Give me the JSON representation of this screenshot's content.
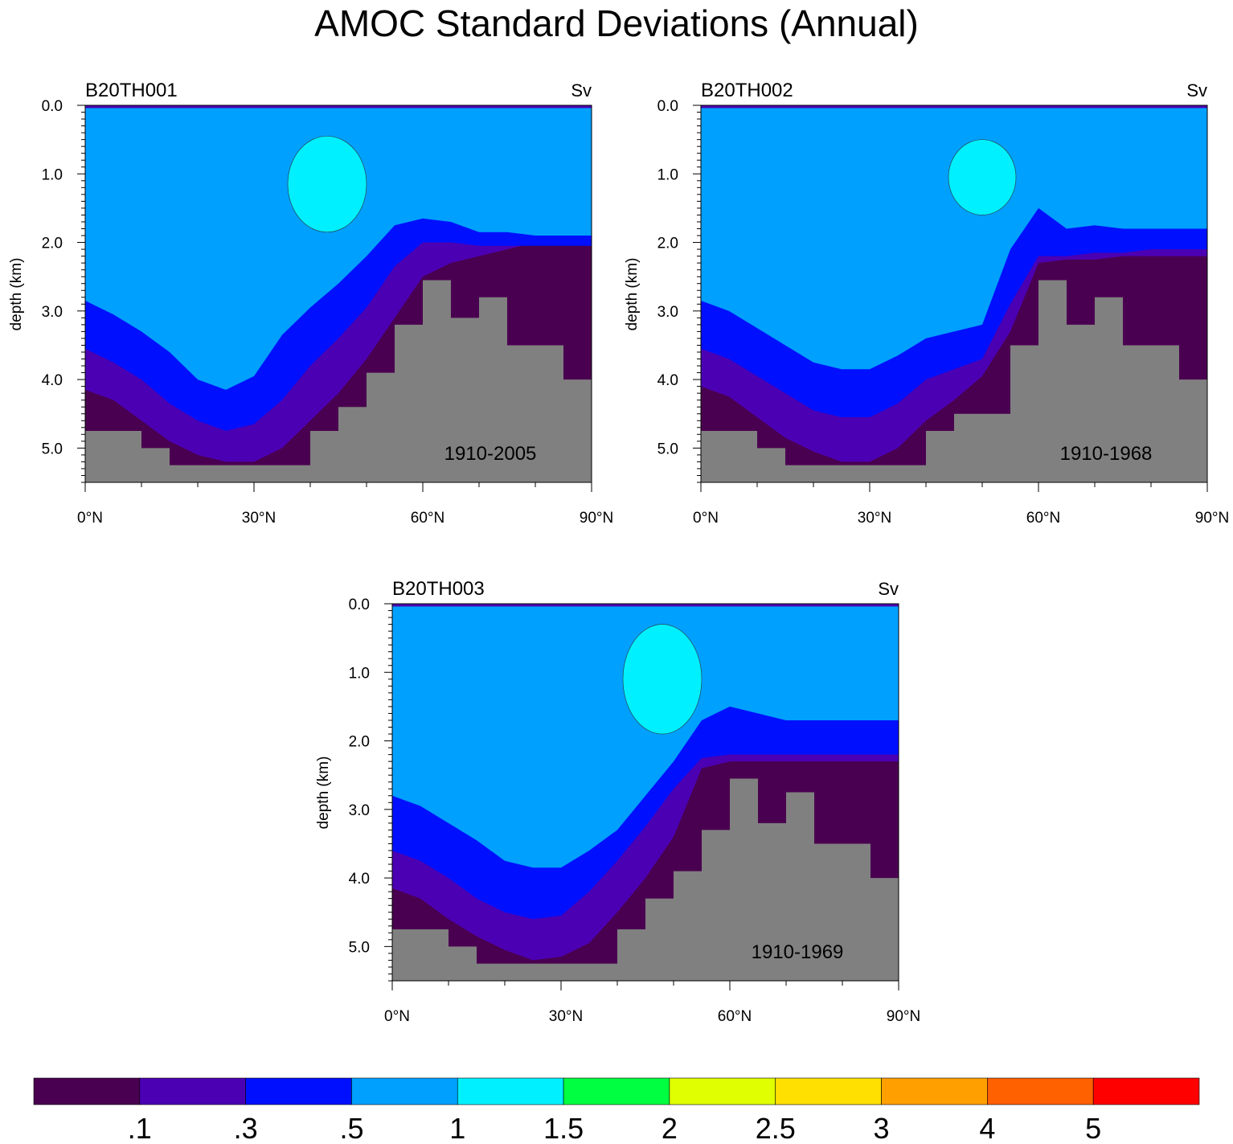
{
  "figure": {
    "title": "AMOC Standard Deviations (Annual)"
  },
  "colors": {
    "levels": [
      "#4a0050",
      "#4b00b3",
      "#0010ff",
      "#00a0ff",
      "#00f0ff",
      "#00ff40",
      "#e0ff00",
      "#ffe000",
      "#ffa000",
      "#ff6000",
      "#ff0000"
    ],
    "land": "#808080",
    "axis": "#000000"
  },
  "chart_data": [
    {
      "type": "heatmap",
      "title": "B20TH001",
      "units": "Sv",
      "period": "1910-2005",
      "xlabel": "",
      "ylabel": "depth (km)",
      "xlim": [
        0,
        90
      ],
      "ylim": [
        0,
        5.5
      ],
      "x_ticks": [
        "0°N",
        "30°N",
        "60°N",
        "90°N"
      ],
      "y_ticks": [
        "0.0",
        "1.0",
        "2.0",
        "3.0",
        "4.0",
        "5.0"
      ],
      "contour_levels": [
        0.1,
        0.3,
        0.5,
        1,
        1.5
      ],
      "bands": {
        "x": [
          0,
          5,
          10,
          15,
          20,
          25,
          30,
          35,
          40,
          45,
          50,
          55,
          60,
          65,
          70,
          75,
          80,
          85,
          90
        ],
        "ge_1_5_island": {
          "x_range": [
            36,
            50
          ],
          "depth_range": [
            0.45,
            1.85
          ]
        },
        "ge_1_bottom": [
          2.85,
          3.05,
          3.3,
          3.6,
          4.0,
          4.15,
          3.95,
          3.35,
          2.95,
          2.6,
          2.2,
          1.75,
          1.65,
          1.7,
          1.85,
          1.85,
          1.9,
          1.9,
          1.9
        ],
        "ge_0_5_bottom": [
          3.55,
          3.75,
          4.0,
          4.35,
          4.6,
          4.75,
          4.65,
          4.3,
          3.8,
          3.4,
          2.95,
          2.35,
          2.0,
          2.0,
          2.05,
          2.05,
          2.05,
          2.05,
          2.05
        ],
        "ge_0_3_bottom": [
          4.15,
          4.3,
          4.6,
          4.9,
          5.1,
          5.2,
          5.2,
          5.0,
          4.6,
          4.2,
          3.7,
          3.1,
          2.5,
          2.3,
          2.2,
          2.1,
          2.0,
          2.0,
          2.0
        ]
      },
      "bathymetry_depth_km": [
        4.75,
        4.75,
        5.0,
        5.25,
        5.25,
        5.25,
        5.25,
        5.25,
        4.75,
        4.4,
        3.9,
        3.2,
        2.55,
        3.1,
        2.8,
        3.5,
        3.5,
        4.0,
        4.0
      ]
    },
    {
      "type": "heatmap",
      "title": "B20TH002",
      "units": "Sv",
      "period": "1910-1968",
      "xlabel": "",
      "ylabel": "depth (km)",
      "xlim": [
        0,
        90
      ],
      "ylim": [
        0,
        5.5
      ],
      "x_ticks": [
        "0°N",
        "30°N",
        "60°N",
        "90°N"
      ],
      "y_ticks": [
        "0.0",
        "1.0",
        "2.0",
        "3.0",
        "4.0",
        "5.0"
      ],
      "contour_levels": [
        0.1,
        0.3,
        0.5,
        1,
        1.5
      ],
      "bands": {
        "x": [
          0,
          5,
          10,
          15,
          20,
          25,
          30,
          35,
          40,
          45,
          50,
          55,
          60,
          65,
          70,
          75,
          80,
          85,
          90
        ],
        "ge_1_5_island": {
          "x_range": [
            44,
            56
          ],
          "depth_range": [
            0.5,
            1.6
          ]
        },
        "ge_1_bottom": [
          2.85,
          3.0,
          3.25,
          3.5,
          3.75,
          3.85,
          3.85,
          3.65,
          3.4,
          3.3,
          3.2,
          2.1,
          1.5,
          1.8,
          1.75,
          1.8,
          1.8,
          1.8,
          1.8
        ],
        "ge_0_5_bottom": [
          3.55,
          3.7,
          3.95,
          4.2,
          4.45,
          4.55,
          4.55,
          4.35,
          4.0,
          3.85,
          3.7,
          2.9,
          2.2,
          2.2,
          2.15,
          2.15,
          2.1,
          2.1,
          2.1
        ],
        "ge_0_3_bottom": [
          4.1,
          4.25,
          4.55,
          4.85,
          5.05,
          5.2,
          5.2,
          5.0,
          4.6,
          4.3,
          3.95,
          3.3,
          2.3,
          2.25,
          2.25,
          2.2,
          2.2,
          2.2,
          2.2
        ]
      },
      "bathymetry_depth_km": [
        4.75,
        4.75,
        5.0,
        5.25,
        5.25,
        5.25,
        5.25,
        5.25,
        4.75,
        4.5,
        4.5,
        3.5,
        2.55,
        3.2,
        2.8,
        3.5,
        3.5,
        4.0,
        4.0
      ]
    },
    {
      "type": "heatmap",
      "title": "B20TH003",
      "units": "Sv",
      "period": "1910-1969",
      "xlabel": "",
      "ylabel": "depth (km)",
      "xlim": [
        0,
        90
      ],
      "ylim": [
        0,
        5.5
      ],
      "x_ticks": [
        "0°N",
        "30°N",
        "60°N",
        "90°N"
      ],
      "y_ticks": [
        "0.0",
        "1.0",
        "2.0",
        "3.0",
        "4.0",
        "5.0"
      ],
      "contour_levels": [
        0.1,
        0.3,
        0.5,
        1,
        1.5
      ],
      "bands": {
        "x": [
          0,
          5,
          10,
          15,
          20,
          25,
          30,
          35,
          40,
          45,
          50,
          55,
          60,
          65,
          70,
          75,
          80,
          85,
          90
        ],
        "ge_1_5_island": {
          "x_range": [
            41,
            55
          ],
          "depth_range": [
            0.3,
            1.9
          ]
        },
        "ge_1_bottom": [
          2.8,
          2.95,
          3.2,
          3.45,
          3.75,
          3.85,
          3.85,
          3.6,
          3.3,
          2.8,
          2.3,
          1.7,
          1.5,
          1.6,
          1.7,
          1.7,
          1.7,
          1.7,
          1.7
        ],
        "ge_0_5_bottom": [
          3.6,
          3.75,
          4.0,
          4.3,
          4.5,
          4.6,
          4.55,
          4.2,
          3.75,
          3.25,
          2.7,
          2.25,
          2.2,
          2.2,
          2.2,
          2.2,
          2.2,
          2.2,
          2.2
        ],
        "ge_0_3_bottom": [
          4.15,
          4.3,
          4.6,
          4.85,
          5.05,
          5.2,
          5.15,
          4.95,
          4.5,
          4.0,
          3.4,
          2.4,
          2.3,
          2.3,
          2.3,
          2.3,
          2.3,
          2.3,
          2.3
        ]
      },
      "bathymetry_depth_km": [
        4.75,
        4.75,
        5.0,
        5.25,
        5.25,
        5.25,
        5.25,
        5.25,
        4.75,
        4.3,
        3.9,
        3.3,
        2.55,
        3.2,
        2.75,
        3.5,
        3.5,
        4.0,
        4.0
      ]
    }
  ],
  "colorbar": {
    "labels": [
      ".1",
      ".3",
      ".5",
      "1",
      "1.5",
      "2",
      "2.5",
      "3",
      "4",
      "5"
    ]
  }
}
